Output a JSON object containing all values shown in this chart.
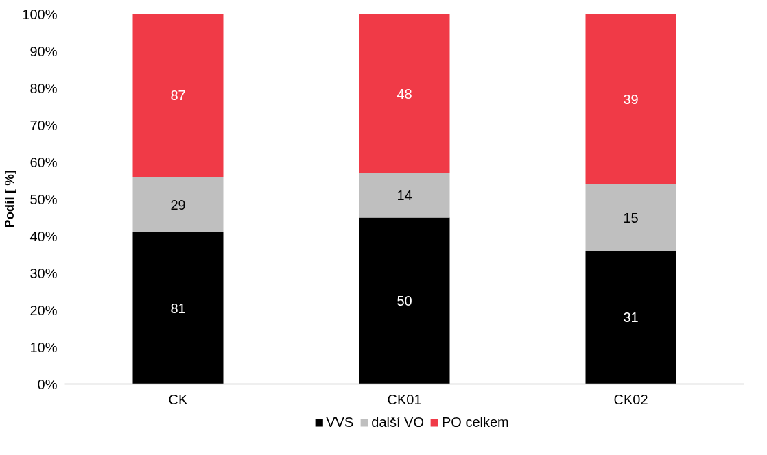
{
  "chart_data": {
    "type": "bar",
    "stacked": true,
    "ylabel": "Podíl [ %]",
    "categories": [
      "CK",
      "CK01",
      "CK02"
    ],
    "series": [
      {
        "name": "VVS",
        "color": "#000000",
        "values": [
          41,
          45,
          36
        ]
      },
      {
        "name": "další VO",
        "color": "#bfbfbf",
        "values": [
          15,
          12,
          18
        ]
      },
      {
        "name": "PO celkem",
        "color": "#f03a47",
        "values": [
          44,
          43,
          46
        ]
      }
    ],
    "annotations": [
      "81",
      "29",
      "87",
      "50",
      "14",
      "48",
      "31",
      "15",
      "39"
    ],
    "ylim": [
      0,
      100
    ],
    "yticks": [
      {
        "value": 0,
        "label": "0%"
      },
      {
        "value": 10,
        "label": "10%"
      },
      {
        "value": 20,
        "label": "20%"
      },
      {
        "value": 30,
        "label": "30%"
      },
      {
        "value": 40,
        "label": "40%"
      },
      {
        "value": 50,
        "label": "50%"
      },
      {
        "value": 60,
        "label": "60%"
      },
      {
        "value": 70,
        "label": "70%"
      },
      {
        "value": 80,
        "label": "80%"
      },
      {
        "value": 90,
        "label": "90%"
      },
      {
        "value": 100,
        "label": "100%"
      }
    ],
    "grid": false,
    "legend": "bottom"
  }
}
